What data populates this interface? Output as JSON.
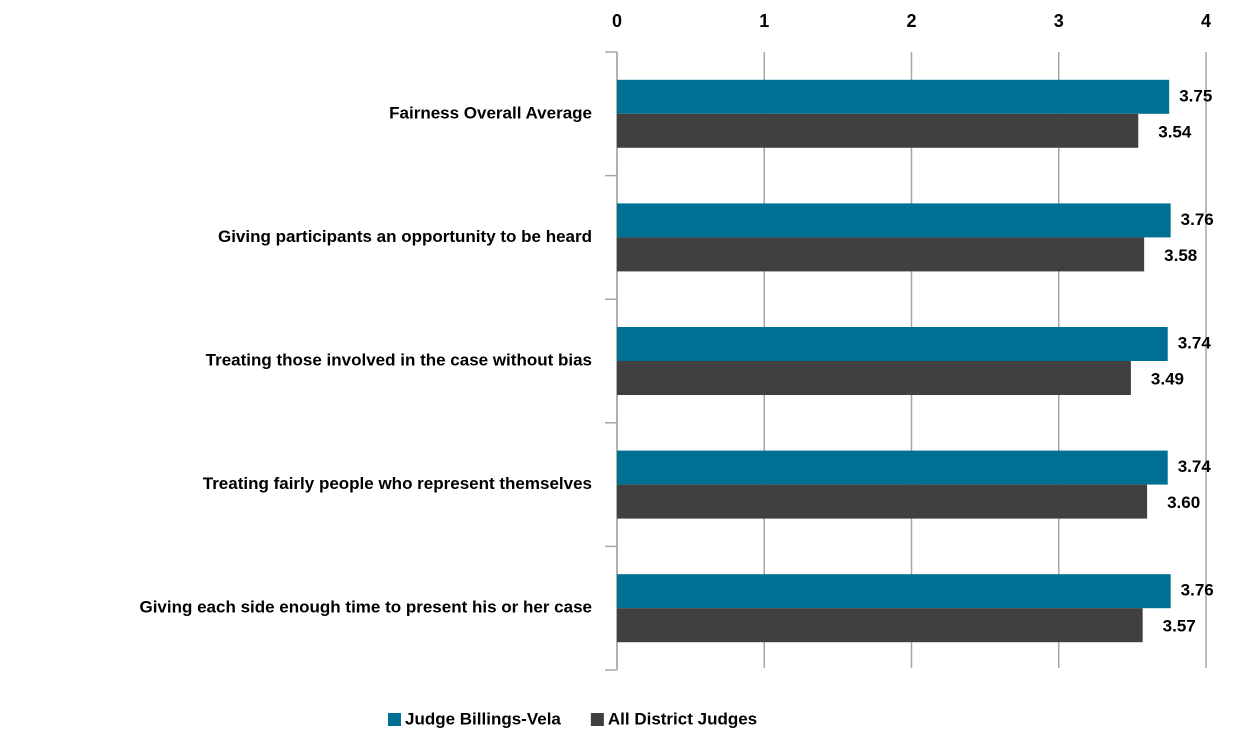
{
  "chart_data": {
    "type": "bar",
    "orientation": "horizontal",
    "categories": [
      "Fairness Overall Average",
      "Giving participants an opportunity to be heard",
      "Treating those involved in the case without bias",
      "Treating fairly people who represent themselves",
      "Giving each side enough time to present his or her case"
    ],
    "series": [
      {
        "name": "Judge Billings-Vela",
        "color": "#006f94",
        "values": [
          3.75,
          3.76,
          3.74,
          3.74,
          3.76
        ],
        "value_labels": [
          "3.75",
          "3.76",
          "3.74",
          "3.74",
          "3.76"
        ]
      },
      {
        "name": "All District Judges",
        "color": "#404040",
        "values": [
          3.54,
          3.58,
          3.49,
          3.6,
          3.57
        ],
        "value_labels": [
          "3.54",
          "3.58",
          "3.49",
          "3.60",
          "3.57"
        ]
      }
    ],
    "xlim": [
      0,
      4
    ],
    "xticks": [
      0,
      1,
      2,
      3,
      4
    ],
    "grid": true,
    "legend": "bottom"
  }
}
